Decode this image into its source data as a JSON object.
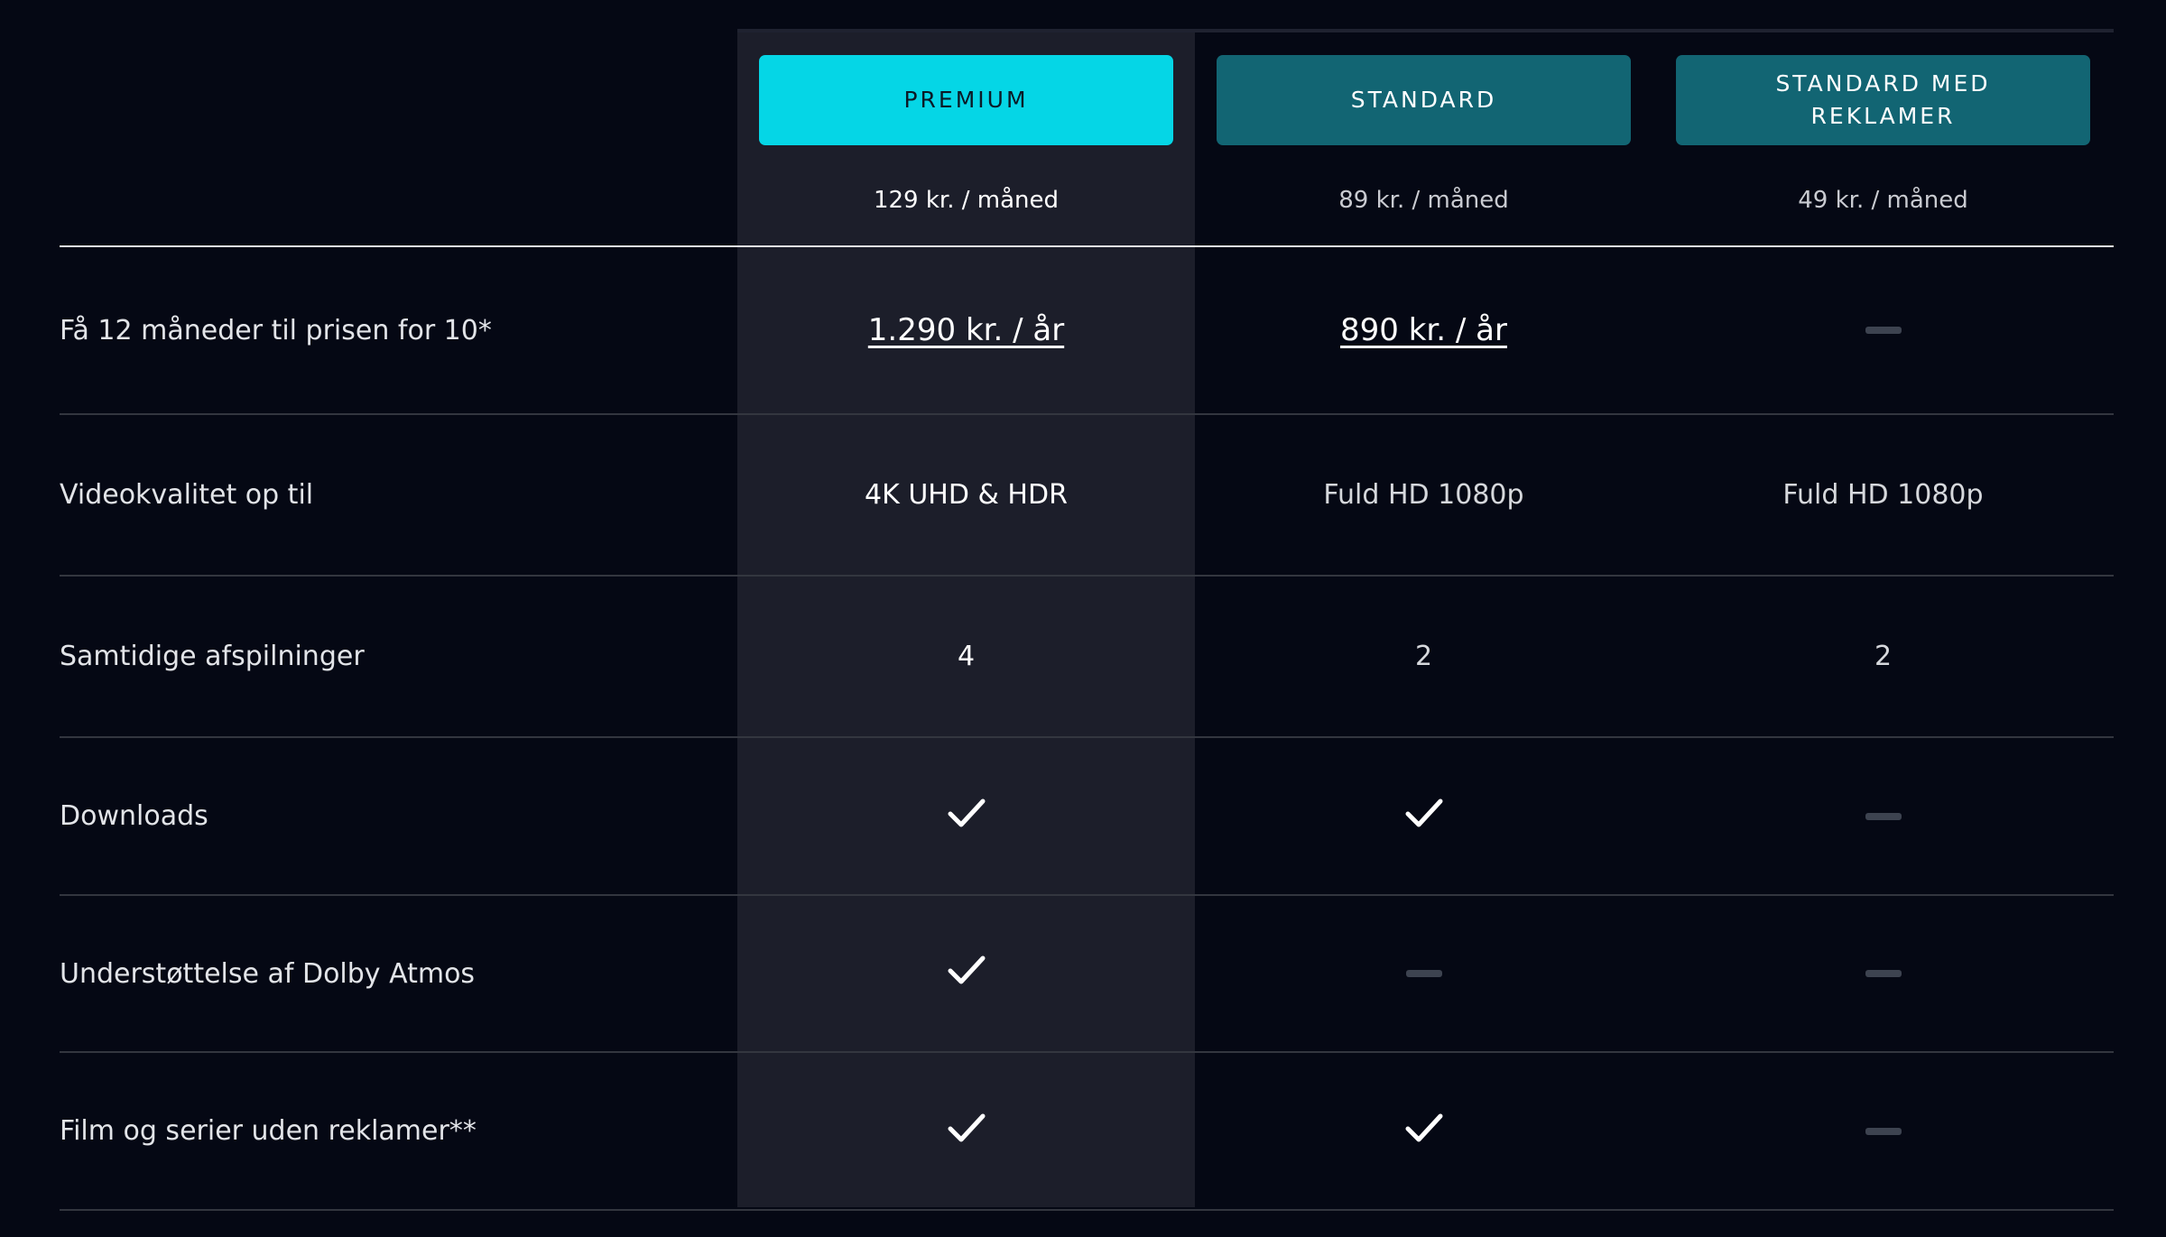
{
  "plans": [
    {
      "name": "PREMIUM",
      "price": "129 kr. / måned",
      "highlight": true
    },
    {
      "name": "STANDARD",
      "price": "89 kr. / måned",
      "highlight": false
    },
    {
      "name": "STANDARD MED REKLAMER",
      "price": "49 kr. / måned",
      "highlight": false
    }
  ],
  "rows": [
    {
      "label": "Få 12 måneder til prisen for 10*",
      "values": [
        {
          "type": "link",
          "text": "1.290 kr. / år"
        },
        {
          "type": "link",
          "text": "890 kr. / år"
        },
        {
          "type": "dash"
        }
      ]
    },
    {
      "label": "Videokvalitet op til",
      "values": [
        {
          "type": "text",
          "text": "4K UHD & HDR"
        },
        {
          "type": "text",
          "text": "Fuld HD 1080p"
        },
        {
          "type": "text",
          "text": "Fuld HD 1080p"
        }
      ]
    },
    {
      "label": "Samtidige afspilninger",
      "values": [
        {
          "type": "text",
          "text": "4"
        },
        {
          "type": "text",
          "text": "2"
        },
        {
          "type": "text",
          "text": "2"
        }
      ]
    },
    {
      "label": "Downloads",
      "values": [
        {
          "type": "check"
        },
        {
          "type": "check"
        },
        {
          "type": "dash"
        }
      ]
    },
    {
      "label": "Understøttelse af Dolby Atmos",
      "values": [
        {
          "type": "check"
        },
        {
          "type": "dash"
        },
        {
          "type": "dash"
        }
      ]
    },
    {
      "label": "Film og serier uden reklamer**",
      "values": [
        {
          "type": "check"
        },
        {
          "type": "check"
        },
        {
          "type": "dash"
        }
      ]
    }
  ],
  "colors": {
    "background": "#050814",
    "highlight_column": "#1c1e2a",
    "primary_button": "#05d6e6",
    "secondary_button": "#126573",
    "dash": "#3d4350"
  },
  "icons": {
    "included": "check-icon",
    "not_included": "dash-icon"
  }
}
